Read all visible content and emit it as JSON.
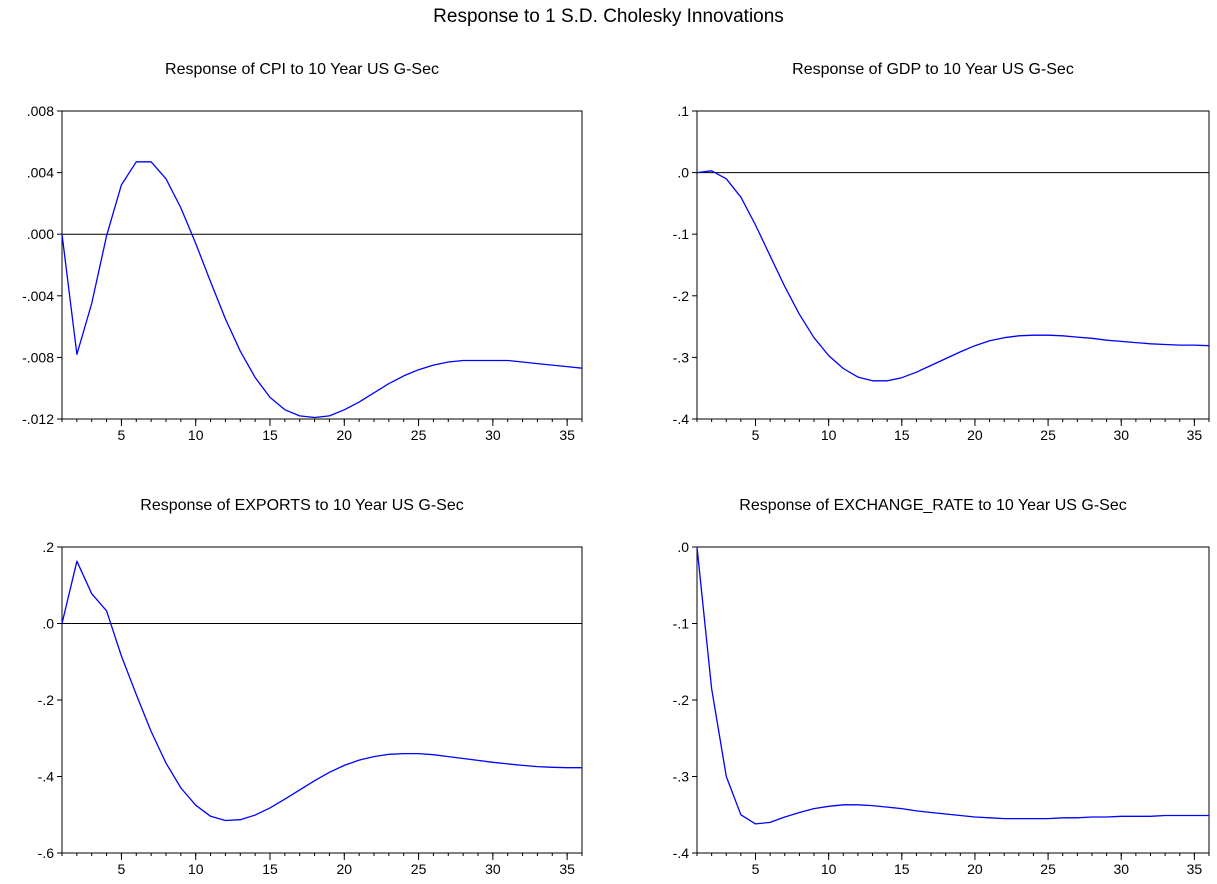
{
  "figure": {
    "title": "Response to 1 S.D. Cholesky Innovations"
  },
  "chart_data": [
    {
      "type": "line",
      "title": "Response of CPI to 10 Year US G-Sec",
      "xlabel": "",
      "ylabel": "",
      "xlim": [
        1,
        36
      ],
      "ylim": [
        -0.012,
        0.008
      ],
      "xticks": [
        5,
        10,
        15,
        20,
        25,
        30,
        35
      ],
      "xtick_labels": [
        "5",
        "10",
        "15",
        "20",
        "25",
        "30",
        "35"
      ],
      "yticks": [
        0.008,
        0.004,
        0.0,
        -0.004,
        -0.008,
        -0.012
      ],
      "ytick_labels": [
        ".008",
        ".004",
        ".000",
        "-.004",
        "-.008",
        "-.012"
      ],
      "zero_line": true,
      "grid": false,
      "colors": {
        "series": "#0000ff",
        "zero": "#000000"
      },
      "x": [
        1,
        2,
        3,
        4,
        5,
        6,
        7,
        8,
        9,
        10,
        11,
        12,
        13,
        14,
        15,
        16,
        17,
        18,
        19,
        20,
        21,
        22,
        23,
        24,
        25,
        26,
        27,
        28,
        29,
        30,
        31,
        32,
        33,
        34,
        35,
        36
      ],
      "series": [
        {
          "values": [
            0.0,
            -0.0078,
            -0.0045,
            -0.0001,
            0.0032,
            0.0047,
            0.0047,
            0.0036,
            0.0017,
            -0.0006,
            -0.0031,
            -0.0055,
            -0.0076,
            -0.0093,
            -0.0106,
            -0.0114,
            -0.0118,
            -0.0119,
            -0.0118,
            -0.0114,
            -0.0109,
            -0.0103,
            -0.0097,
            -0.0092,
            -0.0088,
            -0.0085,
            -0.0083,
            -0.0082,
            -0.0082,
            -0.0082,
            -0.0082,
            -0.0083,
            -0.0084,
            -0.0085,
            -0.0086,
            -0.0087
          ]
        }
      ]
    },
    {
      "type": "line",
      "title": "Response of GDP to 10 Year US G-Sec",
      "xlabel": "",
      "ylabel": "",
      "xlim": [
        1,
        36
      ],
      "ylim": [
        -0.4,
        0.1
      ],
      "xticks": [
        5,
        10,
        15,
        20,
        25,
        30,
        35
      ],
      "xtick_labels": [
        "5",
        "10",
        "15",
        "20",
        "25",
        "30",
        "35"
      ],
      "yticks": [
        0.1,
        0.0,
        -0.1,
        -0.2,
        -0.3,
        -0.4
      ],
      "ytick_labels": [
        ".1",
        ".0",
        "-.1",
        "-.2",
        "-.3",
        "-.4"
      ],
      "zero_line": true,
      "grid": false,
      "colors": {
        "series": "#0000ff",
        "zero": "#000000"
      },
      "x": [
        1,
        2,
        3,
        4,
        5,
        6,
        7,
        8,
        9,
        10,
        11,
        12,
        13,
        14,
        15,
        16,
        17,
        18,
        19,
        20,
        21,
        22,
        23,
        24,
        25,
        26,
        27,
        28,
        29,
        30,
        31,
        32,
        33,
        34,
        35,
        36
      ],
      "series": [
        {
          "values": [
            0.0,
            0.003,
            -0.01,
            -0.04,
            -0.085,
            -0.135,
            -0.185,
            -0.23,
            -0.268,
            -0.297,
            -0.318,
            -0.332,
            -0.338,
            -0.338,
            -0.333,
            -0.324,
            -0.313,
            -0.302,
            -0.291,
            -0.281,
            -0.273,
            -0.268,
            -0.265,
            -0.264,
            -0.264,
            -0.265,
            -0.267,
            -0.269,
            -0.272,
            -0.274,
            -0.276,
            -0.278,
            -0.279,
            -0.28,
            -0.28,
            -0.281
          ]
        }
      ]
    },
    {
      "type": "line",
      "title": "Response of EXPORTS to 10 Year US G-Sec",
      "xlabel": "",
      "ylabel": "",
      "xlim": [
        1,
        36
      ],
      "ylim": [
        -0.6,
        0.2
      ],
      "xticks": [
        5,
        10,
        15,
        20,
        25,
        30,
        35
      ],
      "xtick_labels": [
        "5",
        "10",
        "15",
        "20",
        "25",
        "30",
        "35"
      ],
      "yticks": [
        0.2,
        0.0,
        -0.2,
        -0.4,
        -0.6
      ],
      "ytick_labels": [
        ".2",
        ".0",
        "-.2",
        "-.4",
        "-.6"
      ],
      "zero_line": true,
      "grid": false,
      "colors": {
        "series": "#0000ff",
        "zero": "#000000"
      },
      "x": [
        1,
        2,
        3,
        4,
        5,
        6,
        7,
        8,
        9,
        10,
        11,
        12,
        13,
        14,
        15,
        16,
        17,
        18,
        19,
        20,
        21,
        22,
        23,
        24,
        25,
        26,
        27,
        28,
        29,
        30,
        31,
        32,
        33,
        34,
        35,
        36
      ],
      "series": [
        {
          "values": [
            0.0,
            0.163,
            0.078,
            0.033,
            -0.085,
            -0.186,
            -0.282,
            -0.365,
            -0.43,
            -0.475,
            -0.504,
            -0.515,
            -0.513,
            -0.501,
            -0.482,
            -0.459,
            -0.435,
            -0.411,
            -0.389,
            -0.371,
            -0.357,
            -0.348,
            -0.342,
            -0.34,
            -0.34,
            -0.343,
            -0.348,
            -0.353,
            -0.358,
            -0.363,
            -0.367,
            -0.371,
            -0.374,
            -0.376,
            -0.377,
            -0.377
          ]
        }
      ]
    },
    {
      "type": "line",
      "title": "Response of EXCHANGE_RATE to 10 Year US G-Sec",
      "xlabel": "",
      "ylabel": "",
      "xlim": [
        1,
        36
      ],
      "ylim": [
        -0.4,
        0.0
      ],
      "xticks": [
        5,
        10,
        15,
        20,
        25,
        30,
        35
      ],
      "xtick_labels": [
        "5",
        "10",
        "15",
        "20",
        "25",
        "30",
        "35"
      ],
      "yticks": [
        0.0,
        -0.1,
        -0.2,
        -0.3,
        -0.4
      ],
      "ytick_labels": [
        ".0",
        "-.1",
        "-.2",
        "-.3",
        "-.4"
      ],
      "zero_line": false,
      "grid": false,
      "colors": {
        "series": "#0000ff",
        "zero": "#000000"
      },
      "x": [
        1,
        2,
        3,
        4,
        5,
        6,
        7,
        8,
        9,
        10,
        11,
        12,
        13,
        14,
        15,
        16,
        17,
        18,
        19,
        20,
        21,
        22,
        23,
        24,
        25,
        26,
        27,
        28,
        29,
        30,
        31,
        32,
        33,
        34,
        35,
        36
      ],
      "series": [
        {
          "values": [
            0.0,
            -0.185,
            -0.3,
            -0.35,
            -0.362,
            -0.36,
            -0.353,
            -0.347,
            -0.342,
            -0.339,
            -0.337,
            -0.337,
            -0.338,
            -0.34,
            -0.342,
            -0.345,
            -0.347,
            -0.349,
            -0.351,
            -0.353,
            -0.354,
            -0.355,
            -0.355,
            -0.355,
            -0.355,
            -0.354,
            -0.354,
            -0.353,
            -0.353,
            -0.352,
            -0.352,
            -0.352,
            -0.351,
            -0.351,
            -0.351,
            -0.351
          ]
        }
      ]
    }
  ]
}
